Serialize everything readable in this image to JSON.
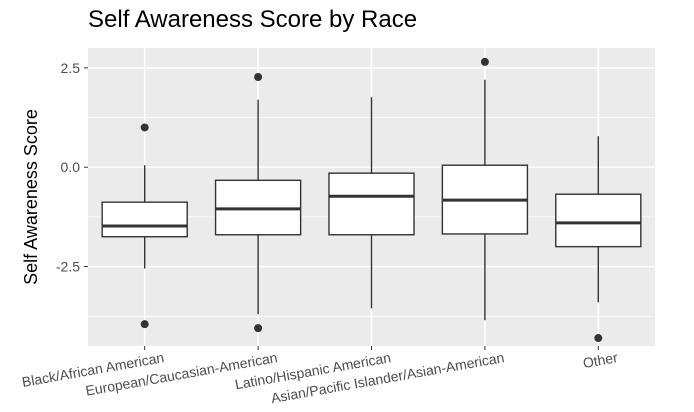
{
  "chart_data": {
    "type": "boxplot",
    "title": "Self Awareness Score by Race",
    "xlabel": "",
    "ylabel": "Self Awareness Score",
    "ylim": [
      -4.5,
      3.0
    ],
    "yticks": [
      2.5,
      0.0,
      -2.5
    ],
    "ytick_labels": [
      "2.5",
      "0.0",
      "-2.5"
    ],
    "grid": true,
    "categories": [
      "Black/African American",
      "European/Caucasian-American",
      "Latino/Hispanic American",
      "Asian/Pacific Islander/Asian-American",
      "Other"
    ],
    "boxes": [
      {
        "category": "Black/African American",
        "whisker_low": -2.55,
        "q1": -1.75,
        "median": -1.48,
        "q3": -0.88,
        "whisker_high": 0.05,
        "outliers": [
          1.0,
          -3.95
        ]
      },
      {
        "category": "European/Caucasian-American",
        "whisker_low": -3.7,
        "q1": -1.7,
        "median": -1.05,
        "q3": -0.33,
        "whisker_high": 1.7,
        "outliers": [
          2.27,
          -4.05
        ]
      },
      {
        "category": "Latino/Hispanic American",
        "whisker_low": -3.55,
        "q1": -1.7,
        "median": -0.73,
        "q3": -0.15,
        "whisker_high": 1.76,
        "outliers": []
      },
      {
        "category": "Asian/Pacific Islander/Asian-American",
        "whisker_low": -3.85,
        "q1": -1.68,
        "median": -0.83,
        "q3": 0.05,
        "whisker_high": 2.2,
        "outliers": [
          2.65
        ]
      },
      {
        "category": "Other",
        "whisker_low": -3.4,
        "q1": -2.0,
        "median": -1.4,
        "q3": -0.68,
        "whisker_high": 0.78,
        "outliers": [
          -4.3
        ]
      }
    ],
    "colors": {
      "panel": "#ebebeb",
      "grid": "#ffffff",
      "box_fill": "#ffffff",
      "box_line": "#333333",
      "tick_text": "#4d4d4d"
    }
  }
}
